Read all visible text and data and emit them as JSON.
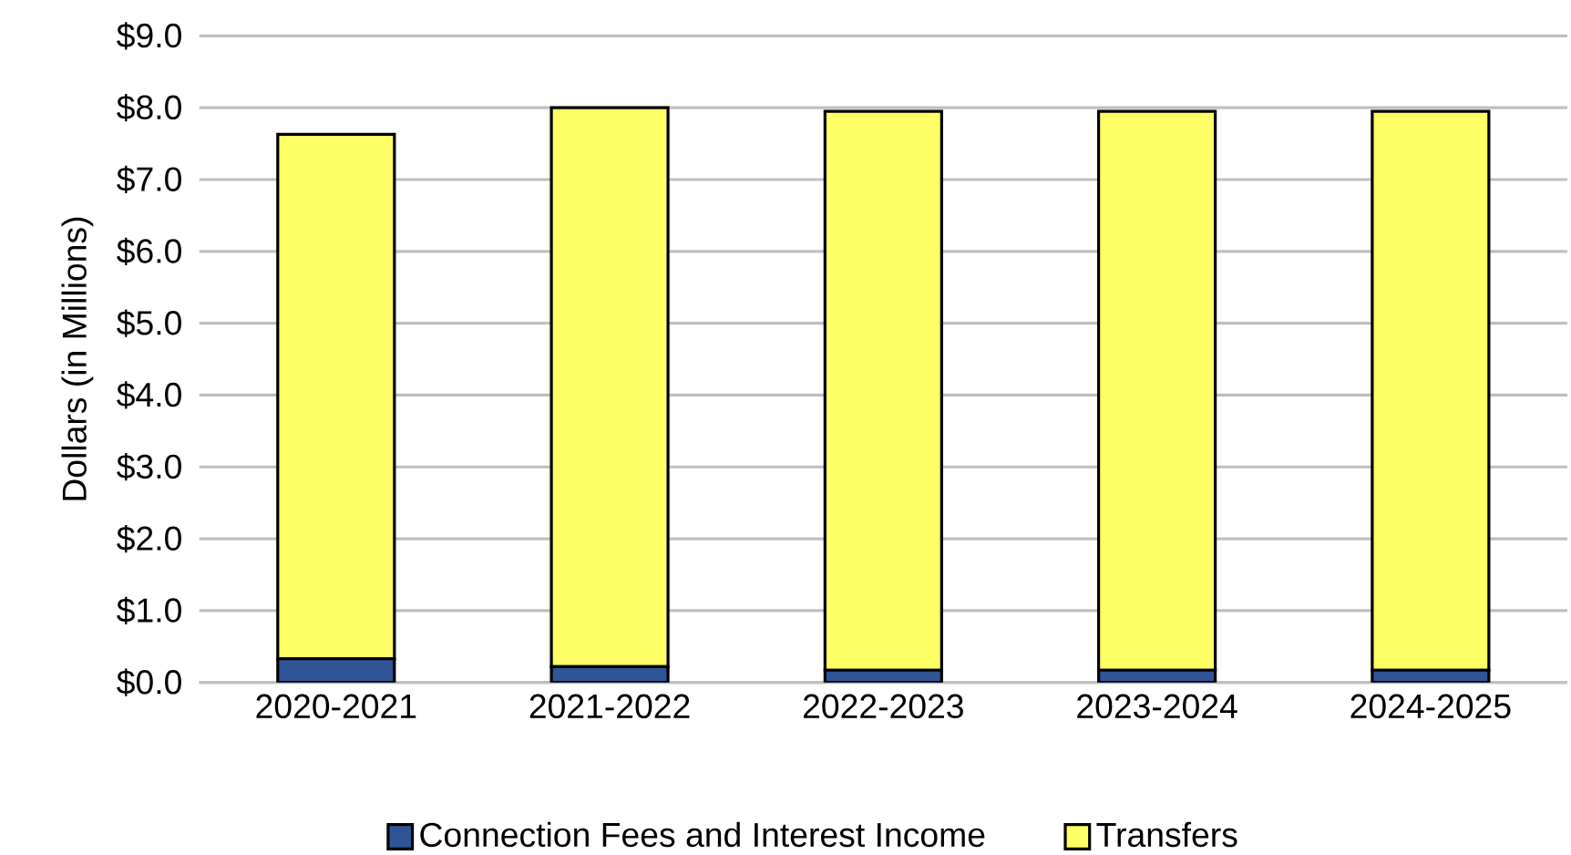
{
  "chart_data": {
    "type": "bar",
    "stacked": true,
    "ylabel": "Dollars (in Millions)",
    "categories": [
      "2020-2021",
      "2021-2022",
      "2022-2023",
      "2023-2024",
      "2024-2025"
    ],
    "series": [
      {
        "name": "Connection Fees and Interest Income",
        "color": "#2f5597",
        "values": [
          0.33,
          0.22,
          0.17,
          0.17,
          0.17
        ]
      },
      {
        "name": "Transfers",
        "color": "#ffff66",
        "values": [
          7.3,
          7.78,
          7.78,
          7.78,
          7.78
        ]
      }
    ],
    "ylim": [
      0,
      9
    ],
    "yticks": [
      {
        "value": 0,
        "label": "$0.0"
      },
      {
        "value": 1,
        "label": "$1.0"
      },
      {
        "value": 2,
        "label": "$2.0"
      },
      {
        "value": 3,
        "label": "$3.0"
      },
      {
        "value": 4,
        "label": "$4.0"
      },
      {
        "value": 5,
        "label": "$5.0"
      },
      {
        "value": 6,
        "label": "$6.0"
      },
      {
        "value": 7,
        "label": "$7.0"
      },
      {
        "value": 8,
        "label": "$8.0"
      },
      {
        "value": 9,
        "label": "$9.0"
      }
    ],
    "grid": "y",
    "legend": "bottom"
  }
}
